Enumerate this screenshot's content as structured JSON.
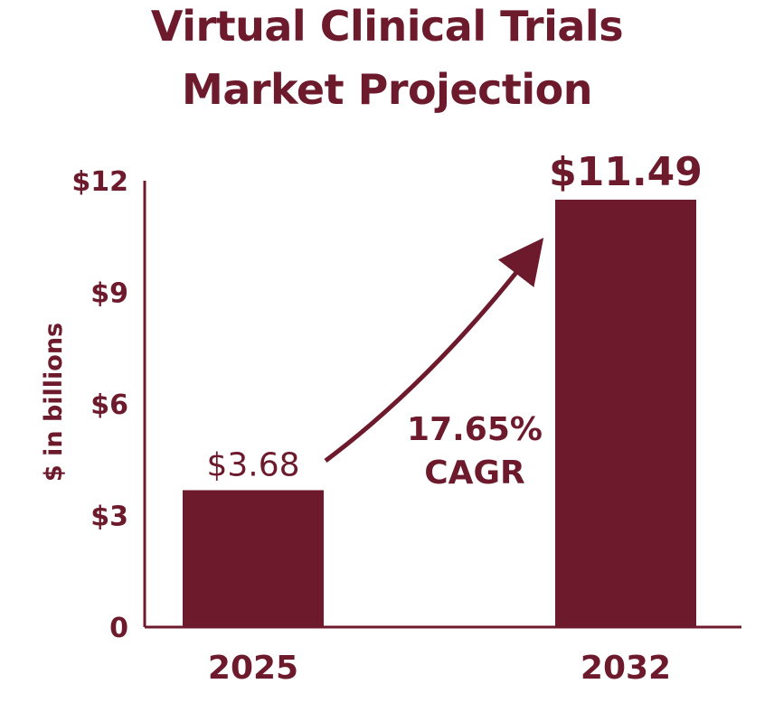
{
  "chart_data": {
    "type": "bar",
    "title_lines": [
      "Virtual Clinical Trials",
      "Market Projection"
    ],
    "ylabel": "$ in billions",
    "ylim": [
      0,
      12
    ],
    "yticks": [
      {
        "value": 0,
        "label": "0"
      },
      {
        "value": 3,
        "label": "$3"
      },
      {
        "value": 6,
        "label": "$6"
      },
      {
        "value": 9,
        "label": "$9"
      },
      {
        "value": 12,
        "label": "$12"
      }
    ],
    "categories": [
      "2025",
      "2032"
    ],
    "values": [
      3.68,
      11.49
    ],
    "data_labels": [
      "$3.68",
      "$11.49"
    ],
    "annotation": {
      "line1": "17.65%",
      "line2": "CAGR"
    },
    "colors": {
      "bar": "#6d1a2c",
      "text": "#6d1a2c",
      "axis": "#6d1a2c"
    },
    "grid": false
  }
}
